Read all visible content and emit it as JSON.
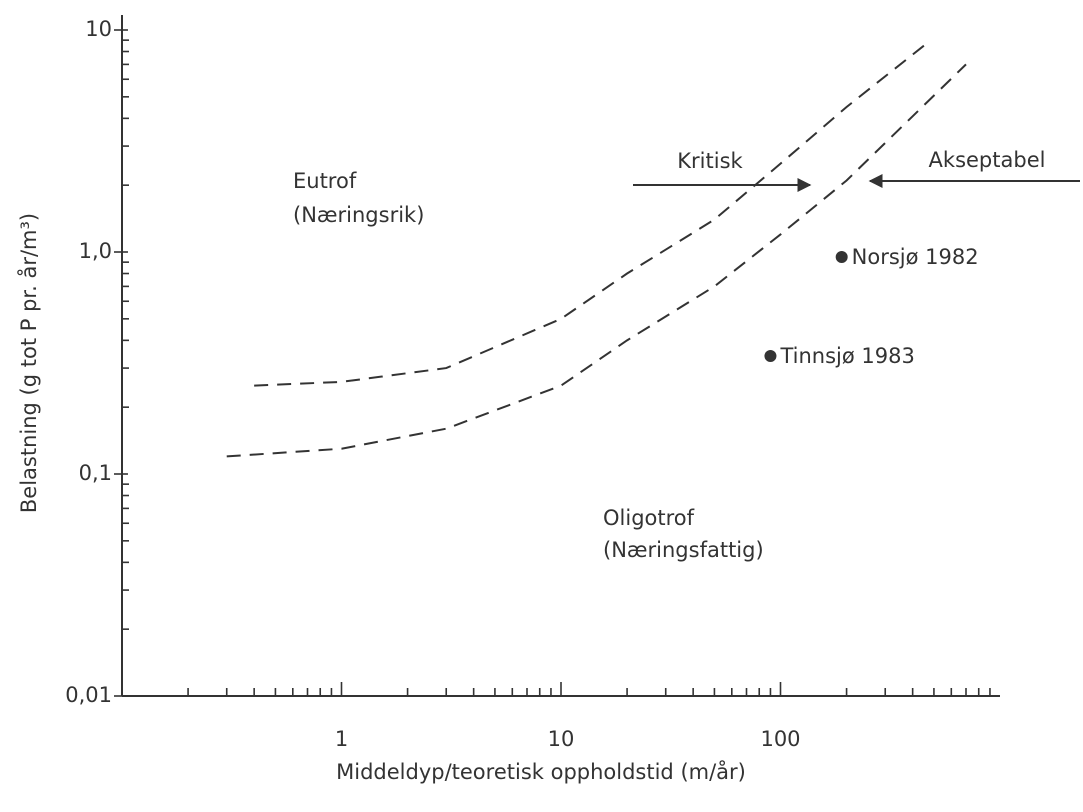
{
  "chart_data": {
    "type": "line",
    "xlabel": "Middeldyp/teoretisk oppholdstid (m/år)",
    "ylabel": "Belastning (g tot P pr. år/m³)",
    "xscale": "log",
    "yscale": "log",
    "xlim": [
      0.1,
      1000
    ],
    "ylim": [
      0.01,
      10
    ],
    "xticks": [
      1,
      10,
      100
    ],
    "xminor": [
      0.2,
      0.3,
      0.4,
      0.5,
      0.6,
      0.7,
      0.8,
      0.9,
      2,
      3,
      4,
      5,
      6,
      7,
      8,
      9,
      20,
      30,
      40,
      50,
      60,
      70,
      80,
      90,
      200,
      300,
      400,
      500,
      600,
      700,
      800,
      900
    ],
    "yticks": [
      {
        "value": 0.01,
        "label": "0,01"
      },
      {
        "value": 0.1,
        "label": "0,1"
      },
      {
        "value": 1,
        "label": "1,0"
      },
      10
    ],
    "yminor": [
      0.02,
      0.03,
      0.04,
      0.05,
      0.06,
      0.07,
      0.08,
      0.09,
      0.2,
      0.3,
      0.4,
      0.5,
      0.6,
      0.7,
      0.8,
      0.9,
      2,
      3,
      4,
      5,
      6,
      7,
      8,
      9
    ],
    "color": "#333333",
    "dashed": true,
    "series": [
      {
        "name": "Kritisk",
        "x": [
          0.4,
          1,
          3,
          10,
          20,
          50,
          100,
          200,
          450
        ],
        "values": [
          0.25,
          0.26,
          0.3,
          0.5,
          0.8,
          1.4,
          2.5,
          4.5,
          8.5
        ]
      },
      {
        "name": "Akseptabel",
        "x": [
          0.3,
          1,
          3,
          10,
          20,
          50,
          100,
          200,
          700
        ],
        "values": [
          0.12,
          0.13,
          0.16,
          0.25,
          0.4,
          0.7,
          1.2,
          2.1,
          7
        ]
      }
    ],
    "points": [
      {
        "name": "Norsjø 1982",
        "x": 190,
        "y": 0.95
      },
      {
        "name": "Tinnsjø 1983",
        "x": 90,
        "y": 0.34
      }
    ],
    "annotations": [
      "Eutrof",
      "(Næringsrik)",
      "Oligotrof",
      "(Næringsfattig)"
    ]
  }
}
